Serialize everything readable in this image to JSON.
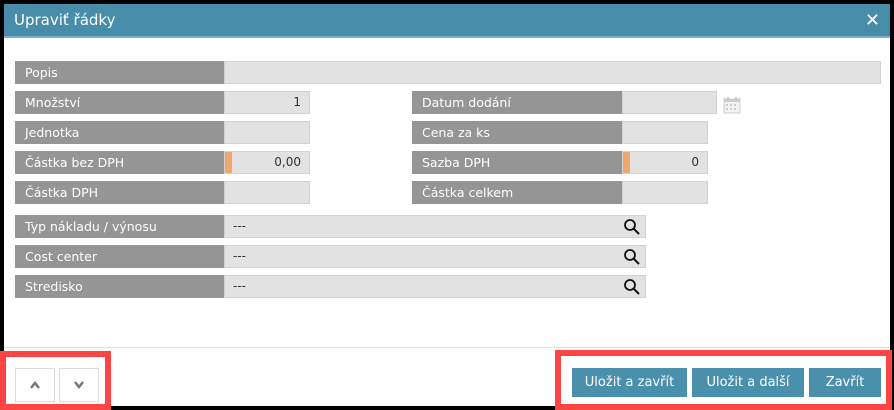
{
  "dialog": {
    "title": "Upraviť řádky"
  },
  "fields": {
    "popis": {
      "label": "Popis",
      "value": ""
    },
    "mnozstvi": {
      "label": "Množství",
      "value": "1"
    },
    "jednotka": {
      "label": "Jednotka",
      "value": ""
    },
    "castka_bez_dph": {
      "label": "Částka bez DPH",
      "value": "0,00"
    },
    "castka_dph": {
      "label": "Částka DPH",
      "value": ""
    },
    "datum_dodani": {
      "label": "Datum dodání",
      "value": ""
    },
    "cena_za_ks": {
      "label": "Cena za ks",
      "value": ""
    },
    "sazba_dph": {
      "label": "Sazba DPH",
      "value": "0"
    },
    "castka_celkem": {
      "label": "Částka celkem",
      "value": ""
    },
    "typ_nakladu": {
      "label": "Typ nákladu / výnosu",
      "value": "---"
    },
    "cost_center": {
      "label": "Cost center",
      "value": "---"
    },
    "stredisko": {
      "label": "Stredisko",
      "value": "---"
    }
  },
  "footer": {
    "save_close": "Uložit a zavřít",
    "save_next": "Uložit a další",
    "close": "Zavřít"
  },
  "colors": {
    "accent": "#478ca9",
    "required": "#eda86e",
    "label_bg": "#959595",
    "highlight": "#ff4444"
  }
}
